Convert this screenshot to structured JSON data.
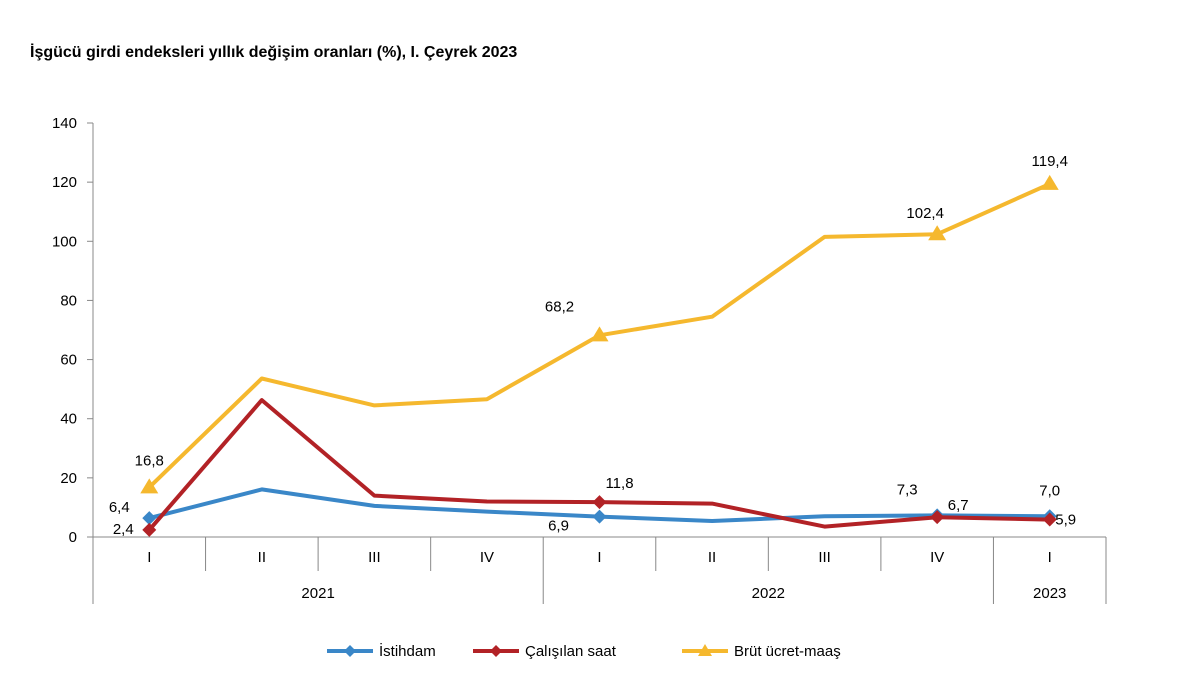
{
  "title": "İşgücü girdi endeksleri yıllık değişim oranları (%), I. Çeyrek 2023",
  "chart_data": {
    "type": "line",
    "title": "İşgücü girdi endeksleri yıllık değişim oranları (%), I. Çeyrek 2023",
    "quarters": [
      "I",
      "II",
      "III",
      "IV",
      "I",
      "II",
      "III",
      "IV",
      "I"
    ],
    "years": [
      {
        "label": "2021",
        "span": 4
      },
      {
        "label": "2022",
        "span": 4
      },
      {
        "label": "2023",
        "span": 1
      }
    ],
    "yticks": [
      "0",
      "20",
      "40",
      "60",
      "80",
      "100",
      "120",
      "140"
    ],
    "ylim": [
      0,
      140
    ],
    "legend_position": "bottom",
    "series": [
      {
        "name": "İstihdam",
        "color": "#3a87c8",
        "marker": "diamond",
        "values": [
          6.4,
          16.1,
          10.5,
          8.6,
          6.9,
          5.4,
          7.0,
          7.3,
          7.0
        ],
        "labels": [
          "6,4",
          "",
          "",
          "",
          "6,9",
          "",
          "",
          "7,3",
          "7,0"
        ]
      },
      {
        "name": "Çalışılan saat",
        "color": "#b22226",
        "marker": "diamond",
        "values": [
          2.4,
          46.3,
          14.0,
          12.0,
          11.8,
          11.3,
          3.5,
          6.7,
          5.9
        ],
        "labels": [
          "2,4",
          "",
          "",
          "",
          "11,8",
          "",
          "",
          "6,7",
          "5,9"
        ]
      },
      {
        "name": "Brüt ücret-maaş",
        "color": "#f5b82e",
        "marker": "triangle",
        "values": [
          16.8,
          53.6,
          44.5,
          46.6,
          68.2,
          74.5,
          101.5,
          102.4,
          119.4
        ],
        "labels": [
          "16,8",
          "",
          "",
          "",
          "68,2",
          "",
          "",
          "102,4",
          "119,4"
        ]
      }
    ]
  }
}
